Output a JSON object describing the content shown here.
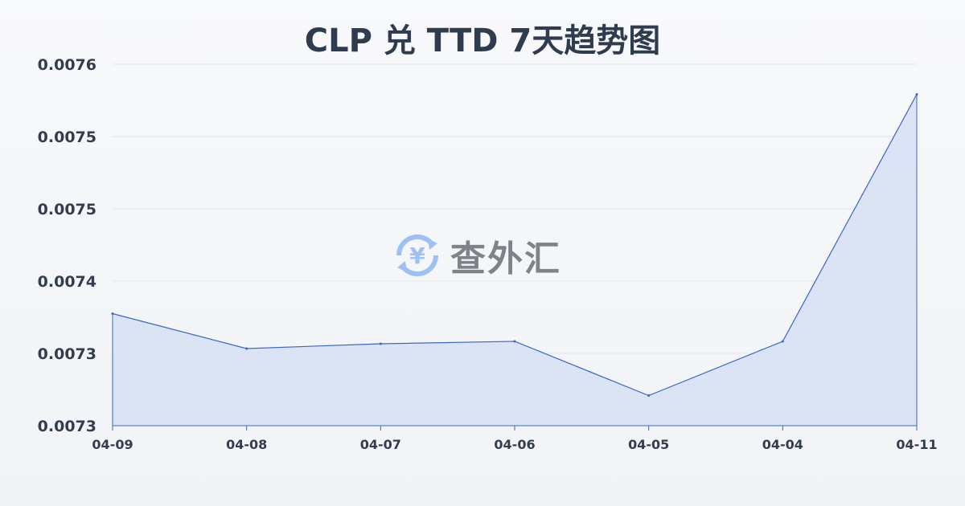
{
  "chart_data": {
    "type": "area",
    "title": "CLP 兑 TTD 7天趋势图",
    "categories": [
      "04-09",
      "04-08",
      "04-07",
      "04-06",
      "04-05",
      "04-04",
      "04-11"
    ],
    "values": [
      0.007373,
      0.007344,
      0.007348,
      0.00735,
      0.007305,
      0.00735,
      0.007555
    ],
    "ylim": [
      0.00728,
      0.00758
    ],
    "yticks": [
      0.00728,
      0.00734,
      0.0074,
      0.00746,
      0.00752,
      0.00758
    ],
    "ytick_labels": [
      "0.0073",
      "0.0073",
      "0.0074",
      "0.0075",
      "0.0075",
      "0.0076"
    ],
    "grid": true,
    "line_color": "#3a66c9",
    "fill_color": "#d6e0f5"
  },
  "watermark": {
    "text": "查外汇",
    "icon": "yuan-exchange-icon",
    "color": "#4f8ff0"
  }
}
